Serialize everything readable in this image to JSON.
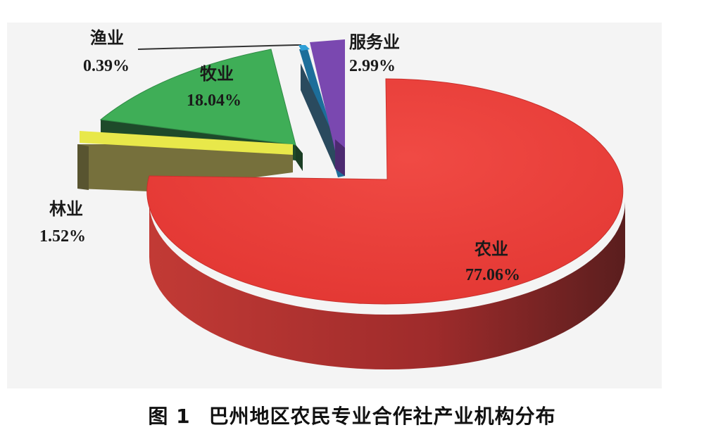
{
  "caption": {
    "figure_number": "图 1",
    "title": "巴州地区农民专业合作社产业机构分布"
  },
  "chart_data": {
    "type": "pie",
    "title": "巴州地区农民专业合作社产业机构分布",
    "slices": [
      {
        "label": "农业",
        "value": 77.06,
        "value_label": "77.06%",
        "color": "#e53935"
      },
      {
        "label": "林业",
        "value": 1.52,
        "value_label": "1.52%",
        "color": "#e8e84a"
      },
      {
        "label": "牧业",
        "value": 18.04,
        "value_label": "18.04%",
        "color": "#3fae57"
      },
      {
        "label": "渔业",
        "value": 0.39,
        "value_label": "0.39%",
        "color": "#2e9fd6"
      },
      {
        "label": "服务业",
        "value": 2.99,
        "value_label": "2.99%",
        "color": "#7a48b0"
      }
    ],
    "style": "3d-exploded"
  }
}
